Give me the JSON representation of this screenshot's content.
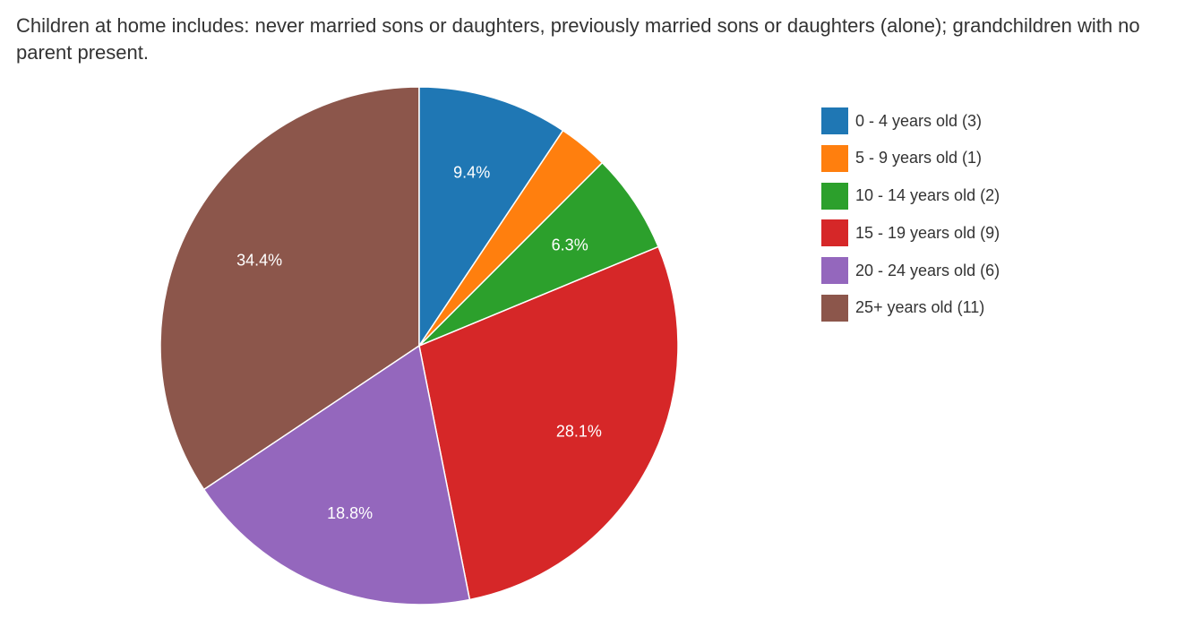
{
  "chart_data": {
    "type": "pie",
    "title": "Children at home includes: never married sons or daughters, previously married sons or daughters (alone); grandchildren with no parent present.",
    "start_angle_deg": 0,
    "direction": "clockwise",
    "legend_position": "right",
    "slices": [
      {
        "label": "0 - 4 years old (3)",
        "value": 3,
        "percent_label": "9.4%",
        "color": "#1f77b4"
      },
      {
        "label": "5 - 9 years old (1)",
        "value": 1,
        "percent_label": "",
        "color": "#ff7f0e"
      },
      {
        "label": "10 - 14 years old (2)",
        "value": 2,
        "percent_label": "6.3%",
        "color": "#2ca02c"
      },
      {
        "label": "15 - 19 years old (9)",
        "value": 9,
        "percent_label": "28.1%",
        "color": "#d62728"
      },
      {
        "label": "20 - 24 years old (6)",
        "value": 6,
        "percent_label": "18.8%",
        "color": "#9467bd"
      },
      {
        "label": "25+ years old (11)",
        "value": 11,
        "percent_label": "34.4%",
        "color": "#8c564b"
      }
    ],
    "draw_order": [
      5,
      3,
      4,
      0,
      2,
      1
    ]
  }
}
